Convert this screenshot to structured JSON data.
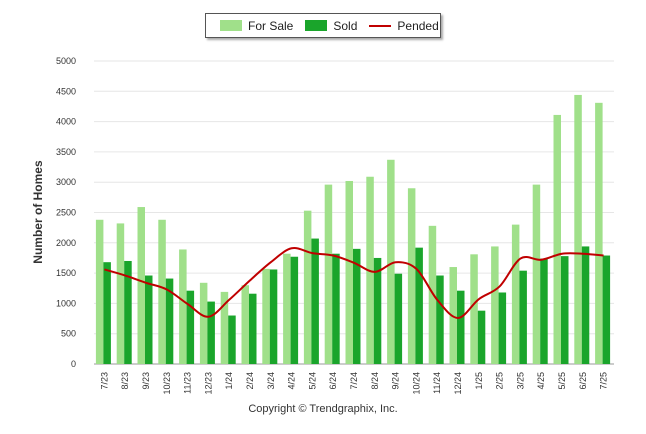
{
  "legend": {
    "for_sale": "For Sale",
    "sold": "Sold",
    "pended": "Pended"
  },
  "credit": "Copyright © Trendgraphix, Inc.",
  "colors": {
    "for_sale": "#a0e08a",
    "sold": "#1aa52b",
    "pended": "#c00000",
    "grid": "#e6e6e6"
  },
  "chart_data": {
    "type": "bar",
    "ylabel": "Number of Homes",
    "ylim": [
      0,
      5000
    ],
    "yticks": [
      0,
      500,
      1000,
      1500,
      2000,
      2500,
      3000,
      3500,
      4000,
      4500,
      5000
    ],
    "grid": true,
    "legend_position": "top-center",
    "categories": [
      "7/23",
      "8/23",
      "9/23",
      "10/23",
      "11/23",
      "12/23",
      "1/24",
      "2/24",
      "3/24",
      "4/24",
      "5/24",
      "6/24",
      "7/24",
      "8/24",
      "9/24",
      "10/24",
      "11/24",
      "12/24",
      "1/25",
      "2/25",
      "3/25",
      "4/25",
      "5/25",
      "6/25",
      "7/25"
    ],
    "series": [
      {
        "name": "For Sale",
        "type": "bar",
        "values": [
          2380,
          2320,
          2590,
          2380,
          1890,
          1340,
          1190,
          1300,
          1570,
          1820,
          2530,
          2960,
          3020,
          3090,
          3370,
          2900,
          2280,
          1600,
          1810,
          1940,
          2300,
          2960,
          4110,
          4440,
          4310
        ]
      },
      {
        "name": "Sold",
        "type": "bar",
        "values": [
          1680,
          1700,
          1460,
          1410,
          1210,
          1030,
          800,
          1160,
          1560,
          1770,
          2070,
          1820,
          1900,
          1750,
          1490,
          1920,
          1460,
          1210,
          880,
          1180,
          1540,
          1740,
          1780,
          1940,
          1790
        ]
      },
      {
        "name": "Pended",
        "type": "line",
        "values": [
          1560,
          1460,
          1340,
          1230,
          990,
          780,
          1060,
          1380,
          1680,
          1910,
          1830,
          1790,
          1670,
          1520,
          1680,
          1570,
          1060,
          760,
          1070,
          1280,
          1740,
          1720,
          1820,
          1820,
          1790
        ]
      }
    ]
  }
}
